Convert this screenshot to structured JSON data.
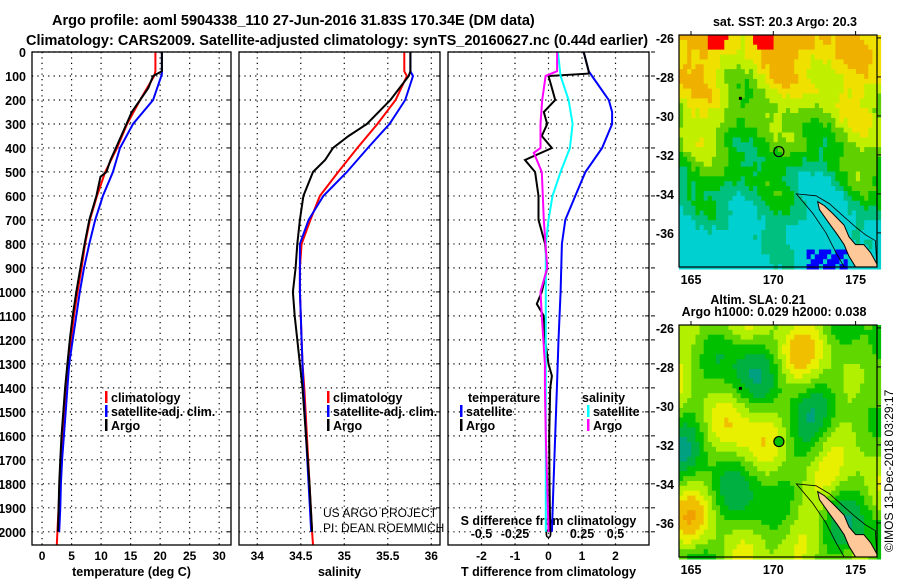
{
  "title": {
    "line1": "Argo profile: aoml 5904338_110 27-Jun-2016 31.83S 170.34E (DM data)",
    "line2": "Climatology: CARS2009. Satellite-adjusted climatology: synTS_20160627.nc (0.44d earlier)"
  },
  "colors": {
    "climatology": "#ff0000",
    "satellite": "#0000ff",
    "argo": "#000000",
    "sat_s_diff": "#00ffff",
    "argo_s_diff": "#ff00ff"
  },
  "credits": {
    "project": "US ARGO PROJECT",
    "pi": "PI: DEAN ROEMMICH",
    "imos": "©IMOS 13-Dec-2018 03:29:17"
  },
  "chart_data": [
    {
      "type": "line",
      "name": "temperature-profile",
      "xlabel": "temperature (deg C)",
      "ylabel": "depth",
      "xlim": [
        -1.7,
        32
      ],
      "ylim": [
        2055,
        0
      ],
      "xticks": [
        0,
        5,
        10,
        15,
        20,
        25,
        30
      ],
      "yticks": [
        0,
        100,
        200,
        300,
        400,
        500,
        600,
        700,
        800,
        900,
        1000,
        1100,
        1200,
        1300,
        1400,
        1500,
        1600,
        1700,
        1800,
        1900,
        2000
      ],
      "legend": [
        "climatology",
        "satellite-adj. clim.",
        "Argo"
      ],
      "series": [
        {
          "name": "climatology",
          "color": "#ff0000",
          "depth": [
            0,
            80,
            100,
            150,
            200,
            300,
            400,
            500,
            600,
            700,
            800,
            900,
            1000,
            1100,
            1200,
            1300,
            1400,
            1500,
            1600,
            1700,
            1800,
            1900,
            2000,
            2055
          ],
          "values": [
            19.2,
            19.2,
            19.0,
            17.8,
            16.6,
            14.4,
            12.7,
            10.7,
            9.3,
            8.1,
            7.3,
            6.7,
            6.0,
            5.4,
            4.9,
            4.4,
            4.1,
            3.8,
            3.5,
            3.2,
            3.0,
            2.8,
            2.6,
            2.5
          ]
        },
        {
          "name": "satellite-adj. clim.",
          "color": "#0000ff",
          "depth": [
            0,
            90,
            100,
            200,
            300,
            400,
            500,
            600,
            700,
            800,
            900,
            1000,
            1100,
            1200,
            1300,
            1400,
            1500,
            1600,
            1700,
            1800,
            1900,
            2000
          ],
          "values": [
            20.3,
            20.3,
            20.2,
            18.8,
            15.4,
            13.2,
            12.0,
            10.3,
            9.0,
            8.0,
            7.1,
            6.4,
            5.8,
            5.2,
            4.6,
            4.3,
            4.0,
            3.7,
            3.4,
            3.2,
            3.1,
            2.9
          ]
        },
        {
          "name": "Argo",
          "color": "#000000",
          "depth": [
            0,
            80,
            100,
            150,
            200,
            250,
            300,
            350,
            400,
            450,
            500,
            520,
            600,
            700,
            800,
            900,
            1000,
            1100,
            1200,
            1300,
            1400,
            1500,
            1600,
            1700,
            1800,
            1900,
            2000
          ],
          "values": [
            20.3,
            20.3,
            18.8,
            18.0,
            16.6,
            15.2,
            14.3,
            13.4,
            12.5,
            11.6,
            10.9,
            9.9,
            9.2,
            8.0,
            7.2,
            6.5,
            5.8,
            5.2,
            4.7,
            4.3,
            3.9,
            3.6,
            3.3,
            3.1,
            2.9,
            2.8,
            2.7
          ]
        }
      ]
    },
    {
      "type": "line",
      "name": "salinity-profile",
      "xlabel": "salinity",
      "ylabel": "depth",
      "xlim": [
        33.79,
        36.1
      ],
      "ylim": [
        2055,
        0
      ],
      "xticks": [
        34,
        34.5,
        35,
        35.5,
        36
      ],
      "legend": [
        "climatology",
        "satellite-adj. clim.",
        "Argo"
      ],
      "series": [
        {
          "name": "climatology",
          "color": "#ff0000",
          "depth": [
            0,
            80,
            100,
            200,
            300,
            400,
            500,
            600,
            700,
            800,
            900,
            1000,
            1100,
            1200,
            1300,
            1400,
            1600,
            1800,
            2000,
            2055
          ],
          "values": [
            35.69,
            35.69,
            35.72,
            35.59,
            35.38,
            35.15,
            34.93,
            34.72,
            34.61,
            34.51,
            34.49,
            34.49,
            34.5,
            34.51,
            34.52,
            34.54,
            34.57,
            34.6,
            34.63,
            34.64
          ]
        },
        {
          "name": "satellite-adj. clim.",
          "color": "#0000ff",
          "depth": [
            0,
            80,
            100,
            200,
            300,
            400,
            500,
            600,
            700,
            800,
            900,
            1000,
            1100,
            1200,
            1300,
            1400,
            1600,
            1800,
            2000
          ],
          "values": [
            35.76,
            35.76,
            35.79,
            35.7,
            35.52,
            35.27,
            35.03,
            34.76,
            34.59,
            34.49,
            34.49,
            34.49,
            34.5,
            34.51,
            34.52,
            34.53,
            34.56,
            34.59,
            34.62
          ]
        },
        {
          "name": "Argo",
          "color": "#000000",
          "depth": [
            0,
            80,
            100,
            200,
            300,
            350,
            400,
            450,
            500,
            600,
            700,
            800,
            900,
            1000,
            1100,
            1200,
            1300,
            1400,
            1600,
            1800,
            2000
          ],
          "values": [
            35.76,
            35.76,
            35.74,
            35.53,
            35.26,
            35.05,
            34.87,
            34.78,
            34.64,
            34.53,
            34.49,
            34.46,
            34.44,
            34.41,
            34.43,
            34.46,
            34.49,
            34.52,
            34.56,
            34.6,
            34.63
          ]
        }
      ]
    },
    {
      "type": "line",
      "name": "difference-profile",
      "xlabel": "T difference from climatology",
      "x2label": "S difference from climatology",
      "xlim": [
        -3,
        3
      ],
      "x2lim": [
        -0.75,
        0.75
      ],
      "ylim": [
        2055,
        0
      ],
      "xticks": [
        -2,
        -1,
        0,
        1,
        2
      ],
      "x2ticks": [
        -0.5,
        -0.25,
        0,
        0.25,
        0.5
      ],
      "legend_t_title": "temperature",
      "legend_s_title": "salinity",
      "legend": [
        "satellite",
        "Argo",
        "satellite",
        "Argo"
      ],
      "series": [
        {
          "name": "T satellite",
          "axis": "T",
          "color": "#0000ff",
          "depth": [
            0,
            80,
            100,
            200,
            250,
            300,
            400,
            500,
            600,
            700,
            800,
            1000,
            1200,
            1400,
            1600,
            1800,
            2000
          ],
          "values": [
            1.05,
            1.2,
            1.3,
            1.8,
            1.9,
            1.9,
            1.6,
            1.1,
            0.8,
            0.5,
            0.4,
            0.36,
            0.3,
            0.25,
            0.2,
            0.15,
            0.1
          ]
        },
        {
          "name": "T Argo",
          "axis": "T",
          "color": "#000000",
          "depth": [
            0,
            80,
            90,
            100,
            150,
            200,
            250,
            300,
            350,
            400,
            450,
            500,
            600,
            700,
            800,
            900,
            1000,
            1050,
            1100,
            1200,
            1300,
            1350,
            1400,
            1600,
            1800,
            2000
          ],
          "values": [
            1.05,
            1.2,
            1.2,
            0.0,
            0.1,
            0.2,
            -0.14,
            -0.04,
            -0.2,
            0.1,
            -0.7,
            -0.4,
            -0.3,
            -0.3,
            -0.1,
            -0.04,
            -0.2,
            -0.35,
            -0.14,
            -0.1,
            0.0,
            0.1,
            0.05,
            0.02,
            0.03,
            0.05
          ]
        },
        {
          "name": "S satellite",
          "axis": "S",
          "color": "#00ffff",
          "depth": [
            0,
            100,
            200,
            300,
            400,
            500,
            600,
            700,
            800,
            1000,
            1200,
            1400,
            1600,
            1800,
            2000
          ],
          "values": [
            0.07,
            0.09,
            0.15,
            0.18,
            0.16,
            0.09,
            0.03,
            0.0,
            -0.02,
            -0.02,
            -0.02,
            -0.02,
            -0.02,
            -0.02,
            -0.02
          ]
        },
        {
          "name": "S Argo",
          "axis": "S",
          "color": "#ff00ff",
          "depth": [
            0,
            80,
            100,
            200,
            300,
            400,
            420,
            500,
            700,
            900,
            1000,
            1100,
            1300,
            1400,
            1600,
            1800,
            2000
          ],
          "values": [
            0.064,
            0.064,
            -0.022,
            -0.047,
            -0.06,
            -0.06,
            -0.11,
            -0.05,
            -0.035,
            -0.01,
            -0.06,
            -0.05,
            -0.027,
            -0.027,
            -0.02,
            -0.01,
            0.0
          ]
        }
      ]
    },
    {
      "type": "heatmap",
      "name": "sst-map",
      "title": "sat. SST: 20.3 Argo: 20.3",
      "xlim": [
        164.27,
        176.3
      ],
      "ylim": [
        -37.75,
        -25.85
      ],
      "xticks": [
        165,
        170,
        175
      ],
      "yticks": [
        -26,
        -28,
        -30,
        -32,
        -34,
        -36
      ],
      "argo_position": {
        "lon": 170.34,
        "lat": -31.83
      },
      "colormap": [
        "#0000ff",
        "#00d0d0",
        "#00c080",
        "#00c000",
        "#60d000",
        "#c0f000",
        "#f0e000",
        "#f0b000",
        "#ff0000"
      ]
    },
    {
      "type": "heatmap",
      "name": "sla-map",
      "title": "Altim. SLA: 0.21",
      "subtitle": "Argo h1000: 0.029 h2000: 0.038",
      "xlim": [
        164.27,
        176.3
      ],
      "ylim": [
        -37.75,
        -25.85
      ],
      "xticks": [
        165,
        170,
        175
      ],
      "yticks": [
        -26,
        -28,
        -30,
        -32,
        -34,
        -36
      ],
      "argo_position": {
        "lon": 170.34,
        "lat": -31.83
      },
      "colormap": [
        "#00a080",
        "#00b040",
        "#00c000",
        "#60d800",
        "#b0f000",
        "#e8f000",
        "#f0c000",
        "#f0a000"
      ]
    }
  ]
}
